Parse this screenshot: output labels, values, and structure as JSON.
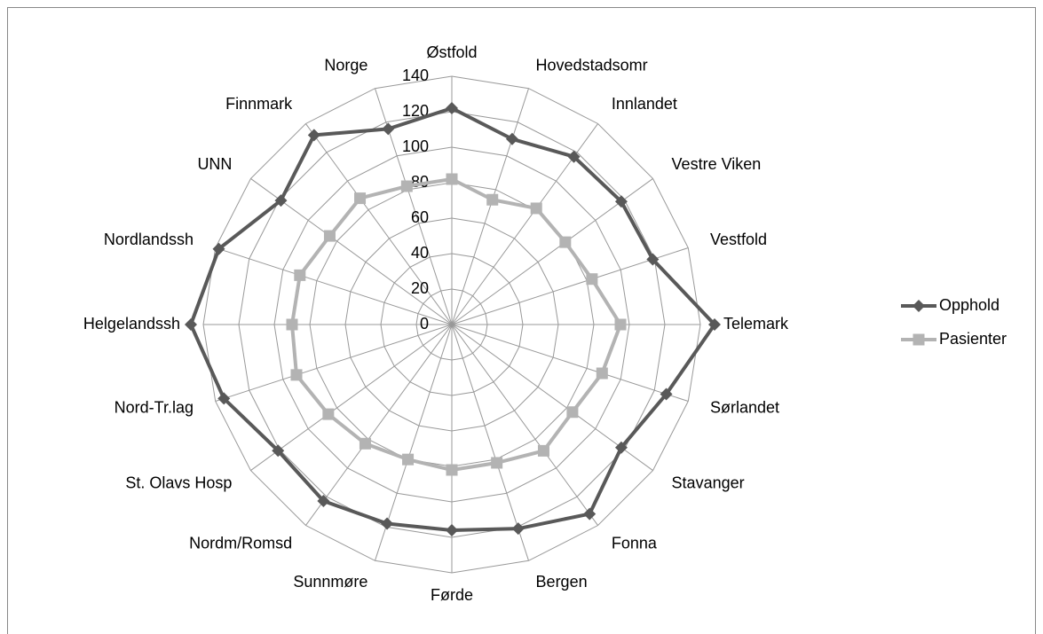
{
  "chart_data": {
    "type": "radar",
    "categories": [
      "Østfold",
      "Hovedstadsomr",
      "Innlandet",
      "Vestre Viken",
      "Vestfold",
      "Telemark",
      "Sørlandet",
      "Stavanger",
      "Fonna",
      "Bergen",
      "Førde",
      "Sunnmøre",
      "Nordm/Romsd",
      "St. Olavs Hosp",
      "Nord-Tr.lag",
      "Helgelandssh",
      "Nordlandssh",
      "UNN",
      "Finnmark",
      "Norge"
    ],
    "series": [
      {
        "name": "Opphold",
        "color": "#595959",
        "marker": "diamond",
        "values": [
          122,
          110,
          117,
          118,
          119,
          148,
          127,
          118,
          132,
          121,
          116,
          118,
          123,
          121,
          135,
          147,
          138,
          119,
          132,
          116
        ]
      },
      {
        "name": "Pasienter",
        "color": "#b3b3b3",
        "marker": "square",
        "values": [
          82,
          74,
          81,
          79,
          83,
          95,
          89,
          84,
          88,
          82,
          82,
          80,
          83,
          86,
          92,
          90,
          90,
          85,
          88,
          82
        ]
      }
    ],
    "ylim": [
      0,
      140
    ],
    "yticks": [
      0,
      20,
      40,
      60,
      80,
      100,
      120,
      140
    ],
    "grid": true,
    "legend": "right"
  }
}
